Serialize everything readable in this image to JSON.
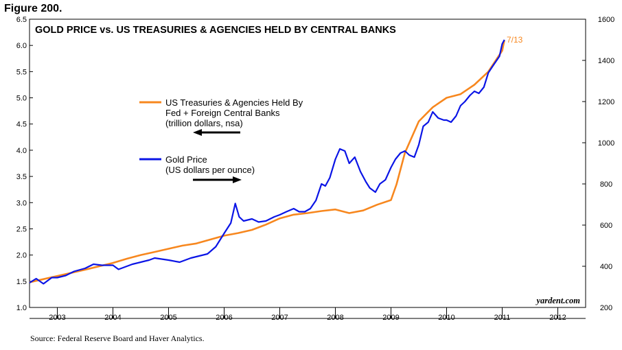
{
  "figure_label": "Figure 200.",
  "source": "Source: Federal Reserve Board and Haver Analytics.",
  "chart_data": {
    "type": "line",
    "title": "GOLD PRICE vs. US TREASURIES & AGENCIES HELD BY CENTRAL BANKS",
    "credit": "yardent.com",
    "x_range": [
      2002.5,
      2012.5
    ],
    "x_tick_labels": [
      "2003",
      "2004",
      "2005",
      "2006",
      "2007",
      "2008",
      "2009",
      "2010",
      "2011",
      "2012"
    ],
    "left_axis": {
      "range": [
        1.0,
        6.5
      ],
      "ticks": [
        "1.0",
        "1.5",
        "2.0",
        "2.5",
        "3.0",
        "3.5",
        "4.0",
        "4.5",
        "5.0",
        "5.5",
        "6.0",
        "6.5"
      ]
    },
    "right_axis": {
      "range": [
        200,
        1600
      ],
      "ticks": [
        "200",
        "400",
        "600",
        "800",
        "1000",
        "1200",
        "1400",
        "1600"
      ]
    },
    "annotation": "7/13",
    "colors": {
      "treasuries": "#f7871e",
      "gold": "#0a14e6",
      "annotation": "#f7871e"
    },
    "series": [
      {
        "name": "US Treasuries & Agencies Held By",
        "legend_lines": [
          "US Treasuries & Agencies Held By",
          "Fed + Foreign Central Banks",
          "(trillion dollars, nsa)"
        ],
        "axis": "left",
        "arrow": "left",
        "x": [
          2002.5,
          2003.0,
          2003.5,
          2004.0,
          2004.25,
          2004.5,
          2004.75,
          2005.0,
          2005.25,
          2005.5,
          2006.0,
          2006.25,
          2006.5,
          2006.75,
          2007.0,
          2007.25,
          2007.5,
          2007.75,
          2008.0,
          2008.25,
          2008.5,
          2008.75,
          2009.0,
          2009.1,
          2009.25,
          2009.5,
          2009.75,
          2010.0,
          2010.25,
          2010.5,
          2010.75,
          2011.0,
          2011.04
        ],
        "values": [
          1.48,
          1.6,
          1.72,
          1.85,
          1.93,
          2.0,
          2.06,
          2.12,
          2.18,
          2.22,
          2.37,
          2.42,
          2.48,
          2.58,
          2.7,
          2.77,
          2.8,
          2.84,
          2.87,
          2.8,
          2.85,
          2.96,
          3.05,
          3.35,
          3.95,
          4.55,
          4.82,
          5.0,
          5.07,
          5.25,
          5.5,
          5.9,
          6.1
        ]
      },
      {
        "name": "Gold Price",
        "legend_lines": [
          "Gold Price",
          "(US dollars per ounce)"
        ],
        "axis": "right",
        "arrow": "right",
        "x": [
          2002.5,
          2002.62,
          2002.75,
          2002.9,
          2003.0,
          2003.15,
          2003.3,
          2003.5,
          2003.65,
          2003.8,
          2004.0,
          2004.1,
          2004.2,
          2004.35,
          2004.5,
          2004.65,
          2004.75,
          2005.0,
          2005.2,
          2005.4,
          2005.55,
          2005.7,
          2005.85,
          2006.0,
          2006.12,
          2006.2,
          2006.27,
          2006.35,
          2006.5,
          2006.62,
          2006.75,
          2006.9,
          2007.0,
          2007.12,
          2007.25,
          2007.35,
          2007.45,
          2007.55,
          2007.65,
          2007.75,
          2007.82,
          2007.9,
          2008.0,
          2008.08,
          2008.17,
          2008.25,
          2008.35,
          2008.45,
          2008.55,
          2008.62,
          2008.72,
          2008.8,
          2008.9,
          2009.0,
          2009.08,
          2009.17,
          2009.25,
          2009.33,
          2009.42,
          2009.5,
          2009.58,
          2009.67,
          2009.75,
          2009.85,
          2009.95,
          2010.0,
          2010.08,
          2010.17,
          2010.25,
          2010.33,
          2010.42,
          2010.5,
          2010.58,
          2010.67,
          2010.75,
          2010.85,
          2010.95,
          2011.0,
          2011.04
        ],
        "values": [
          320,
          340,
          315,
          345,
          345,
          355,
          375,
          390,
          410,
          405,
          405,
          385,
          395,
          410,
          420,
          430,
          440,
          430,
          420,
          440,
          450,
          460,
          495,
          560,
          610,
          705,
          640,
          620,
          630,
          615,
          620,
          640,
          650,
          665,
          680,
          665,
          665,
          680,
          720,
          800,
          790,
          830,
          920,
          970,
          960,
          900,
          930,
          860,
          810,
          780,
          760,
          800,
          820,
          880,
          920,
          950,
          960,
          940,
          930,
          990,
          1080,
          1100,
          1150,
          1120,
          1110,
          1110,
          1100,
          1130,
          1180,
          1200,
          1230,
          1250,
          1240,
          1270,
          1340,
          1380,
          1420,
          1480,
          1500
        ]
      }
    ]
  }
}
